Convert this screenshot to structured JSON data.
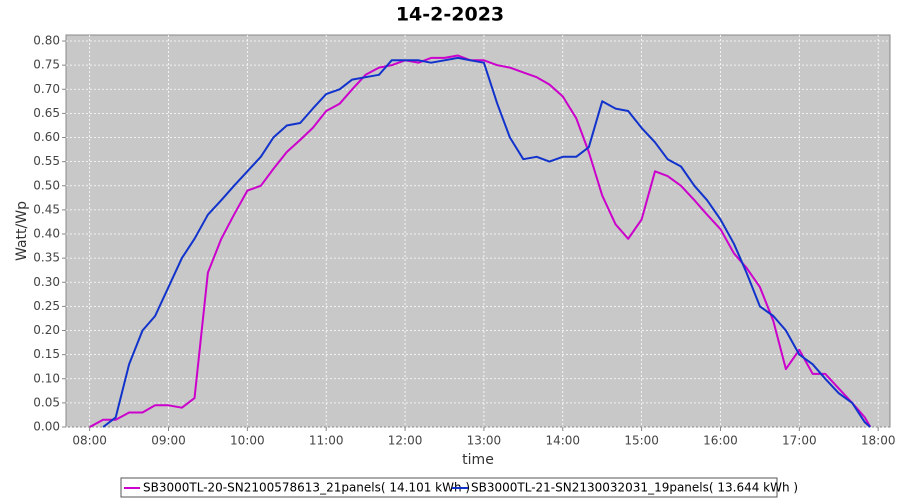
{
  "chart_data": {
    "type": "line",
    "title": "14-2-2023",
    "xlabel": "time",
    "ylabel": "Watt/Wp",
    "x": [
      8,
      8.17,
      8.33,
      8.5,
      8.67,
      8.83,
      9,
      9.17,
      9.33,
      9.5,
      9.67,
      9.83,
      10,
      10.17,
      10.33,
      10.5,
      10.67,
      10.83,
      11,
      11.17,
      11.33,
      11.5,
      11.67,
      11.83,
      12,
      12.17,
      12.33,
      12.5,
      12.67,
      12.83,
      13,
      13.17,
      13.33,
      13.5,
      13.67,
      13.83,
      14,
      14.17,
      14.33,
      14.5,
      14.67,
      14.83,
      15,
      15.17,
      15.33,
      15.5,
      15.67,
      15.83,
      16,
      16.17,
      16.33,
      16.5,
      16.67,
      16.83,
      17,
      17.17,
      17.33,
      17.5,
      17.67,
      17.83,
      17.9
    ],
    "series": [
      {
        "name": "SB3000TL-20-SN2100578613_21panels( 14.101 kWh )",
        "color": "#cc00cc",
        "values": [
          0,
          0.015,
          0.015,
          0.03,
          0.03,
          0.045,
          0.045,
          0.04,
          0.06,
          0.32,
          0.39,
          0.44,
          0.49,
          0.5,
          0.535,
          0.57,
          0.595,
          0.62,
          0.655,
          0.67,
          0.7,
          0.73,
          0.745,
          0.75,
          0.76,
          0.755,
          0.765,
          0.765,
          0.77,
          0.76,
          0.76,
          0.75,
          0.745,
          0.735,
          0.725,
          0.71,
          0.685,
          0.64,
          0.57,
          0.48,
          0.42,
          0.39,
          0.43,
          0.53,
          0.52,
          0.5,
          0.47,
          0.44,
          0.41,
          0.36,
          0.33,
          0.29,
          0.22,
          0.12,
          0.16,
          0.11,
          0.11,
          0.08,
          0.05,
          0.02,
          0
        ]
      },
      {
        "name": "SB3000TL-21-SN2130032031_19panels( 13.644 kWh )",
        "color": "#1133cc",
        "values": [
          null,
          0,
          0.02,
          0.13,
          0.2,
          0.23,
          0.29,
          0.35,
          0.39,
          0.44,
          0.47,
          0.5,
          0.53,
          0.56,
          0.6,
          0.625,
          0.63,
          0.66,
          0.69,
          0.7,
          0.72,
          0.725,
          0.73,
          0.76,
          0.76,
          0.76,
          0.755,
          0.76,
          0.765,
          0.76,
          0.755,
          0.67,
          0.6,
          0.555,
          0.56,
          0.55,
          0.56,
          0.56,
          0.58,
          0.675,
          0.66,
          0.655,
          0.62,
          0.59,
          0.555,
          0.54,
          0.5,
          0.47,
          0.43,
          0.38,
          0.32,
          0.25,
          0.23,
          0.2,
          0.15,
          0.13,
          0.1,
          0.07,
          0.05,
          0.01,
          0
        ]
      }
    ],
    "xlim": [
      7.7,
      18.15
    ],
    "xticks": [
      {
        "value": 8,
        "label": "08:00"
      },
      {
        "value": 9,
        "label": "09:00"
      },
      {
        "value": 10,
        "label": "10:00"
      },
      {
        "value": 11,
        "label": "11:00"
      },
      {
        "value": 12,
        "label": "12:00"
      },
      {
        "value": 13,
        "label": "13:00"
      },
      {
        "value": 14,
        "label": "14:00"
      },
      {
        "value": 15,
        "label": "15:00"
      },
      {
        "value": 16,
        "label": "16:00"
      },
      {
        "value": 17,
        "label": "17:00"
      },
      {
        "value": 18,
        "label": "18:00"
      }
    ],
    "ylim": [
      0,
      0.8125
    ],
    "yticks": [
      {
        "value": 0,
        "label": "0.00"
      },
      0.05,
      {
        "value": 0.1,
        "label": "0.10"
      },
      0.15,
      {
        "value": 0.2,
        "label": "0.20"
      },
      0.25,
      {
        "value": 0.3,
        "label": "0.30"
      },
      0.35,
      {
        "value": 0.4,
        "label": "0.40"
      },
      0.45,
      {
        "value": 0.5,
        "label": "0.50"
      },
      0.55,
      {
        "value": 0.6,
        "label": "0.60"
      },
      0.65,
      {
        "value": 0.7,
        "label": "0.70"
      },
      0.75,
      {
        "value": 0.8,
        "label": "0.80"
      }
    ],
    "grid": true,
    "legend": "bottom"
  }
}
